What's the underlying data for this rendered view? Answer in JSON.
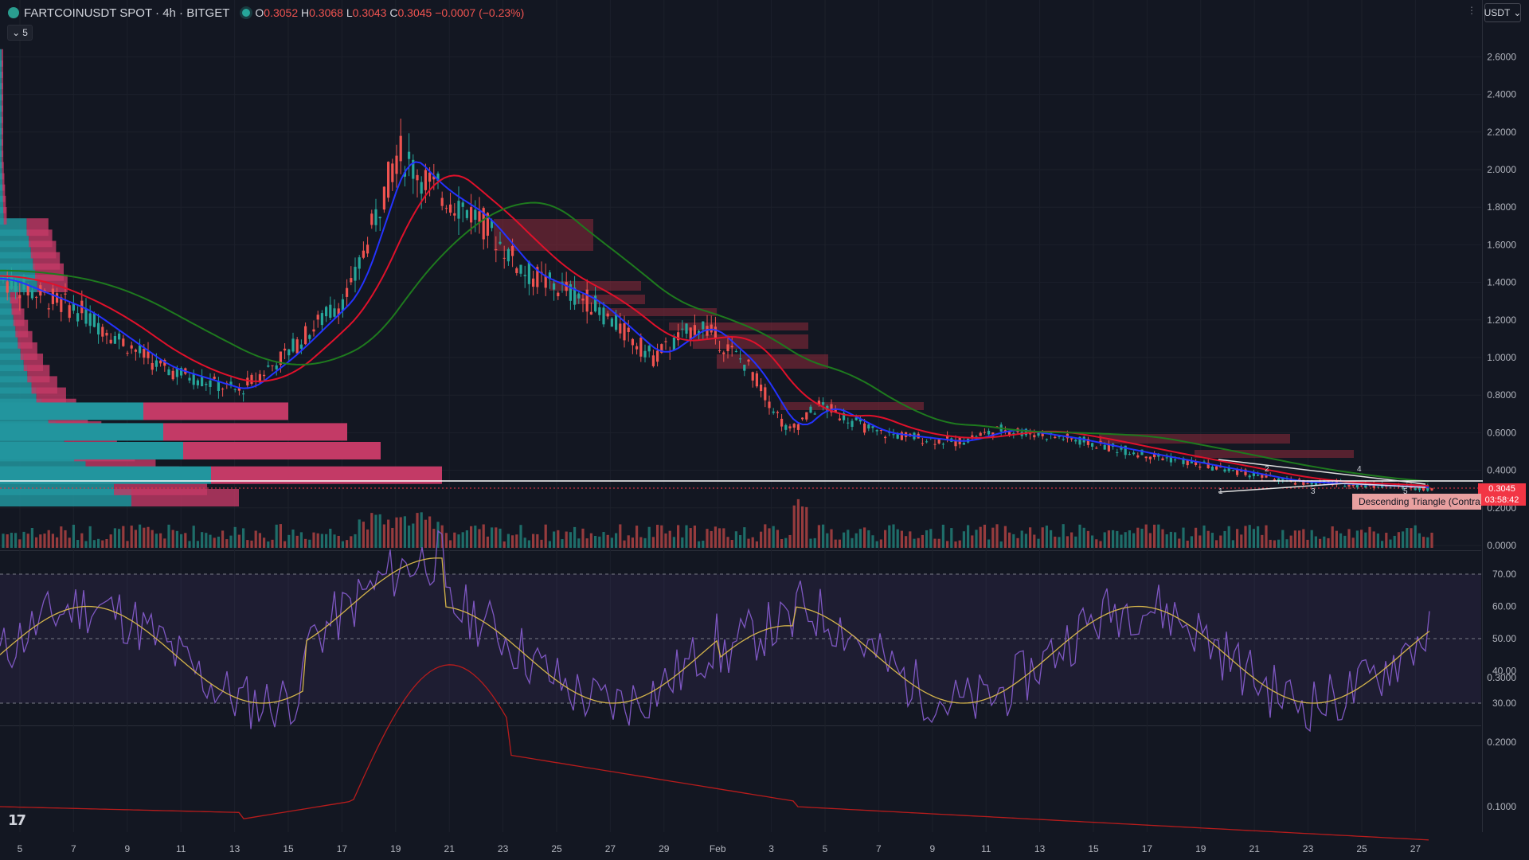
{
  "header": {
    "title": "FARTCOINUSDT SPOT · 4h · BITGET",
    "open_key": "O",
    "open": "0.3052",
    "high_key": "H",
    "high": "0.3068",
    "low_key": "L",
    "low": "0.3043",
    "close_key": "C",
    "close": "0.3045",
    "change": "−0.0007 (−0.23%)"
  },
  "indicator_toggle": {
    "icon": "chevron-down-icon",
    "count": "5"
  },
  "currency_button": {
    "label": "USDT",
    "icon": "chevron-down-icon"
  },
  "price_tag": {
    "price": "0.3045",
    "countdown": "03:58:42"
  },
  "pattern_label": "Descending Triangle (Contra",
  "pattern_points": [
    "1",
    "2",
    "3",
    "4",
    "5"
  ],
  "price_axis": [
    "2.6000",
    "2.4000",
    "2.2000",
    "2.0000",
    "1.8000",
    "1.6000",
    "1.4000",
    "1.2000",
    "1.0000",
    "0.8000",
    "0.6000",
    "0.4000",
    "0.2000",
    "0.0000"
  ],
  "rsi_axis": [
    "70.00",
    "60.00",
    "50.00",
    "40.00",
    "30.00"
  ],
  "osc_axis": [
    "0.3000",
    "0.2000",
    "0.1000"
  ],
  "time_axis": [
    "5",
    "7",
    "9",
    "11",
    "13",
    "15",
    "17",
    "19",
    "21",
    "23",
    "25",
    "27",
    "29",
    "Feb",
    "3",
    "5",
    "7",
    "9",
    "11",
    "13",
    "15",
    "17",
    "19",
    "21",
    "23",
    "25",
    "27"
  ],
  "colors": {
    "background": "#131722",
    "up": "#26a69a",
    "down": "#ef5350",
    "ema_fast": "#2433ff",
    "ema_mid": "#e0112b",
    "ema_slow": "#1e7a1e",
    "rsi": "#7e57c2",
    "rsi_ma": "#d4b44a",
    "osc": "#b71c1c"
  },
  "logo": "TradingView"
}
